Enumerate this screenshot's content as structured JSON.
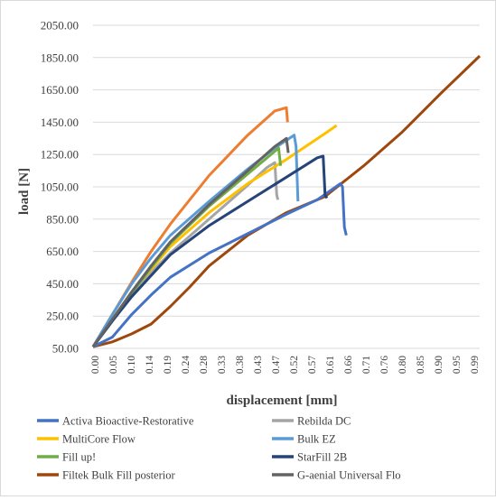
{
  "chart_data": {
    "type": "line",
    "title": "",
    "xlabel": "displacement [mm]",
    "ylabel": "load [N]",
    "xlim": [
      0,
      1.0
    ],
    "ylim": [
      50,
      2050
    ],
    "yticks": [
      "50.00",
      "250.00",
      "450.00",
      "650.00",
      "850.00",
      "1050.00",
      "1250.00",
      "1450.00",
      "1650.00",
      "1850.00",
      "2050.00"
    ],
    "xticks": [
      "0.00",
      "0.05",
      "0.10",
      "0.14",
      "0.19",
      "0.24",
      "0.28",
      "0.33",
      "0.38",
      "0.43",
      "0.47",
      "0.52",
      "0.57",
      "0.61",
      "0.66",
      "0.71",
      "0.76",
      "0.80",
      "0.85",
      "0.90",
      "0.95",
      "0.99"
    ],
    "grid": true,
    "legend_position": "bottom",
    "series": [
      {
        "name": "Activa Bioactive-Restorative",
        "color": "#4472C4",
        "points": [
          [
            0,
            60
          ],
          [
            0.05,
            120
          ],
          [
            0.1,
            260
          ],
          [
            0.15,
            380
          ],
          [
            0.2,
            490
          ],
          [
            0.3,
            640
          ],
          [
            0.4,
            760
          ],
          [
            0.5,
            880
          ],
          [
            0.58,
            970
          ],
          [
            0.64,
            1070
          ],
          [
            0.645,
            1050
          ],
          [
            0.65,
            800
          ],
          [
            0.655,
            750
          ]
        ]
      },
      {
        "name": "Rebilda DC",
        "color": "#A5A5A5",
        "points": [
          [
            0,
            60
          ],
          [
            0.05,
            220
          ],
          [
            0.1,
            380
          ],
          [
            0.15,
            520
          ],
          [
            0.2,
            640
          ],
          [
            0.3,
            850
          ],
          [
            0.4,
            1060
          ],
          [
            0.45,
            1170
          ],
          [
            0.47,
            1200
          ],
          [
            0.475,
            1000
          ],
          [
            0.478,
            970
          ]
        ]
      },
      {
        "name": "MultiCore Flow",
        "color": "#FFC000",
        "points": [
          [
            0,
            60
          ],
          [
            0.05,
            230
          ],
          [
            0.1,
            400
          ],
          [
            0.15,
            540
          ],
          [
            0.2,
            680
          ],
          [
            0.3,
            890
          ],
          [
            0.4,
            1070
          ],
          [
            0.5,
            1220
          ],
          [
            0.6,
            1380
          ],
          [
            0.63,
            1430
          ]
        ]
      },
      {
        "name": "Bulk EZ",
        "color": "#5B9BD5",
        "points": [
          [
            0,
            60
          ],
          [
            0.05,
            260
          ],
          [
            0.1,
            450
          ],
          [
            0.15,
            610
          ],
          [
            0.2,
            750
          ],
          [
            0.3,
            960
          ],
          [
            0.4,
            1160
          ],
          [
            0.47,
            1290
          ],
          [
            0.52,
            1370
          ],
          [
            0.525,
            1300
          ],
          [
            0.53,
            960
          ]
        ]
      },
      {
        "name": "Fill up!",
        "color": "#70AD47",
        "points": [
          [
            0,
            60
          ],
          [
            0.05,
            220
          ],
          [
            0.1,
            390
          ],
          [
            0.15,
            550
          ],
          [
            0.2,
            700
          ],
          [
            0.3,
            930
          ],
          [
            0.4,
            1130
          ],
          [
            0.47,
            1270
          ],
          [
            0.48,
            1290
          ],
          [
            0.485,
            1180
          ]
        ]
      },
      {
        "name": "StarFill 2B",
        "color": "#264478",
        "points": [
          [
            0,
            60
          ],
          [
            0.05,
            220
          ],
          [
            0.1,
            370
          ],
          [
            0.15,
            500
          ],
          [
            0.2,
            630
          ],
          [
            0.3,
            810
          ],
          [
            0.4,
            960
          ],
          [
            0.5,
            1110
          ],
          [
            0.58,
            1230
          ],
          [
            0.595,
            1240
          ],
          [
            0.6,
            1000
          ],
          [
            0.605,
            980
          ]
        ]
      },
      {
        "name": "Filtek Bulk Fill posterior",
        "color": "#C0504D",
        "points": [
          [
            0,
            60
          ],
          [
            0.05,
            90
          ],
          [
            0.1,
            140
          ],
          [
            0.15,
            200
          ],
          [
            0.2,
            310
          ],
          [
            0.25,
            430
          ],
          [
            0.3,
            560
          ],
          [
            0.4,
            750
          ],
          [
            0.5,
            890
          ],
          [
            0.6,
            990
          ],
          [
            0.7,
            1180
          ],
          [
            0.8,
            1390
          ],
          [
            0.9,
            1630
          ],
          [
            1.0,
            1860
          ]
        ]
      },
      {
        "name": "G-aenial Universal Flo",
        "color": "#636363",
        "points": [
          [
            0,
            60
          ],
          [
            0.05,
            230
          ],
          [
            0.1,
            400
          ],
          [
            0.15,
            560
          ],
          [
            0.2,
            710
          ],
          [
            0.3,
            940
          ],
          [
            0.4,
            1150
          ],
          [
            0.47,
            1300
          ],
          [
            0.5,
            1350
          ],
          [
            0.505,
            1260
          ]
        ]
      }
    ],
    "extra_series_color": {
      "Filtek Bulk Fill posterior": "#9E480E",
      "Rebilda DC_orange": "#ED7D31"
    },
    "orange_series": {
      "name": "",
      "color": "#ED7D31",
      "points": [
        [
          0,
          60
        ],
        [
          0.05,
          260
        ],
        [
          0.1,
          460
        ],
        [
          0.15,
          650
        ],
        [
          0.2,
          820
        ],
        [
          0.3,
          1120
        ],
        [
          0.4,
          1370
        ],
        [
          0.47,
          1520
        ],
        [
          0.5,
          1540
        ],
        [
          0.503,
          1450
        ]
      ]
    }
  }
}
